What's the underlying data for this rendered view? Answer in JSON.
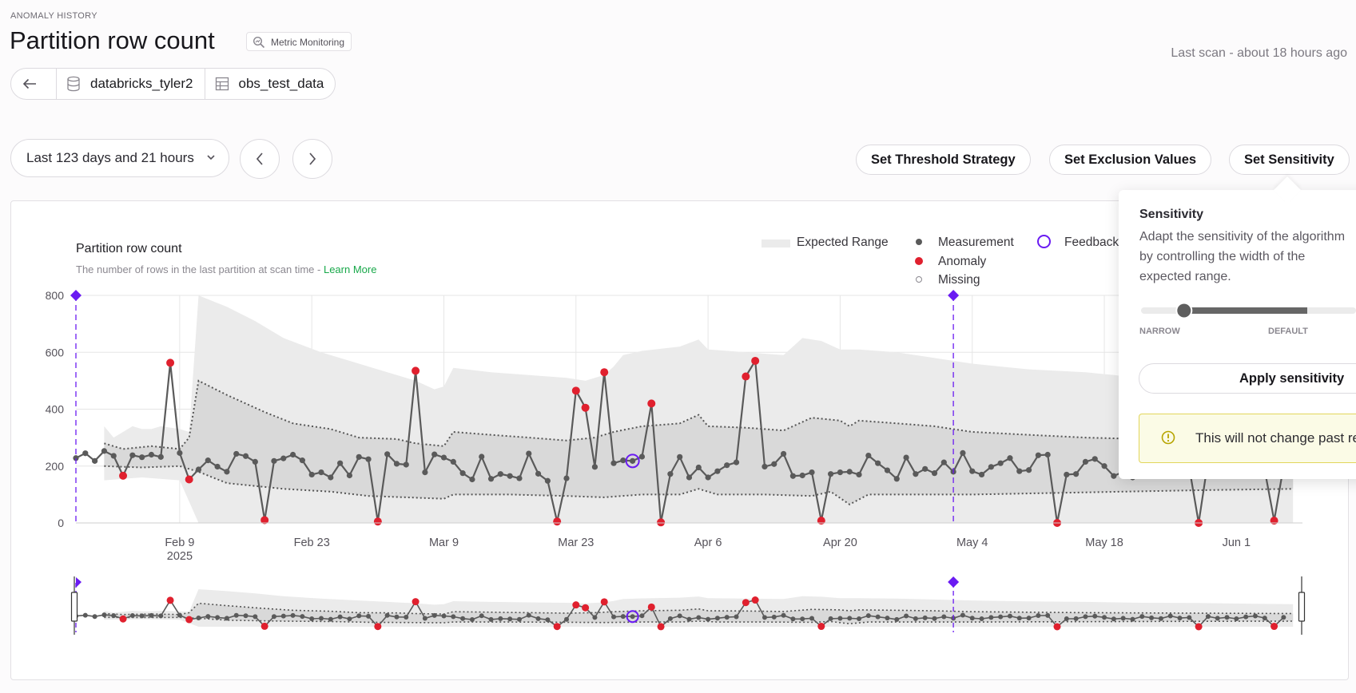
{
  "header": {
    "eyebrow": "ANOMALY HISTORY",
    "title": "Partition row count",
    "tag": "Metric Monitoring",
    "last_scan": "Last scan - about 18 hours ago",
    "breadcrumbs": [
      "databricks_tyler2",
      "obs_test_data"
    ]
  },
  "toolbar": {
    "range_label": "Last 123 days and 21 hours",
    "buttons": [
      "Set Threshold Strategy",
      "Set Exclusion Values",
      "Set Sensitivity"
    ]
  },
  "chart": {
    "title": "Partition row count",
    "subtitle": "The number of rows in the last partition at scan time - ",
    "learn_more": "Learn More",
    "legend": {
      "expected_range": "Expected Range",
      "measurement": "Measurement",
      "anomaly": "Anomaly",
      "missing": "Missing",
      "feedback": "Feedback"
    }
  },
  "chart_data": {
    "type": "line",
    "xlabel": "",
    "ylabel": "",
    "ylim": [
      0,
      800
    ],
    "y_ticks": [
      0,
      200,
      400,
      600,
      800
    ],
    "x_range": [
      "2025-01-29",
      "2025-06-08"
    ],
    "x_ticks": [
      {
        "date": "2025-02-09",
        "label": "Feb 9",
        "sub": "2025"
      },
      {
        "date": "2025-02-23",
        "label": "Feb 23",
        "sub": ""
      },
      {
        "date": "2025-03-09",
        "label": "Mar 9",
        "sub": ""
      },
      {
        "date": "2025-03-23",
        "label": "Mar 23",
        "sub": ""
      },
      {
        "date": "2025-04-06",
        "label": "Apr 6",
        "sub": ""
      },
      {
        "date": "2025-04-20",
        "label": "Apr 20",
        "sub": ""
      },
      {
        "date": "2025-05-04",
        "label": "May 4",
        "sub": ""
      },
      {
        "date": "2025-05-18",
        "label": "May 18",
        "sub": ""
      },
      {
        "date": "2025-06-01",
        "label": "Jun 1",
        "sub": ""
      }
    ],
    "markers": [
      "2025-01-29",
      "2025-05-02"
    ],
    "feedback_point": "2025-03-29",
    "expected_outer_upper": [
      [
        "2025-02-01",
        340
      ],
      [
        "2025-02-02",
        300
      ],
      [
        "2025-02-04",
        340
      ],
      [
        "2025-02-05",
        330
      ],
      [
        "2025-02-06",
        330
      ],
      [
        "2025-02-07",
        340
      ],
      [
        "2025-02-09",
        330
      ],
      [
        "2025-02-10",
        320
      ],
      [
        "2025-02-11",
        800
      ],
      [
        "2025-02-14",
        760
      ],
      [
        "2025-02-17",
        710
      ],
      [
        "2025-02-20",
        650
      ],
      [
        "2025-02-24",
        600
      ],
      [
        "2025-02-28",
        560
      ],
      [
        "2025-03-03",
        530
      ],
      [
        "2025-03-06",
        500
      ],
      [
        "2025-03-08",
        470
      ],
      [
        "2025-03-09",
        480
      ],
      [
        "2025-03-10",
        545
      ],
      [
        "2025-03-14",
        530
      ],
      [
        "2025-03-18",
        520
      ],
      [
        "2025-03-22",
        510
      ],
      [
        "2025-03-24",
        500
      ],
      [
        "2025-03-26",
        520
      ],
      [
        "2025-03-27",
        550
      ],
      [
        "2025-03-28",
        590
      ],
      [
        "2025-03-30",
        605
      ],
      [
        "2025-04-03",
        620
      ],
      [
        "2025-04-05",
        645
      ],
      [
        "2025-04-06",
        610
      ],
      [
        "2025-04-10",
        600
      ],
      [
        "2025-04-14",
        590
      ],
      [
        "2025-04-16",
        650
      ],
      [
        "2025-04-18",
        640
      ],
      [
        "2025-04-20",
        610
      ],
      [
        "2025-04-22",
        610
      ],
      [
        "2025-04-26",
        600
      ],
      [
        "2025-04-30",
        580
      ],
      [
        "2025-05-04",
        560
      ],
      [
        "2025-05-10",
        540
      ],
      [
        "2025-05-16",
        530
      ],
      [
        "2025-05-22",
        510
      ],
      [
        "2025-05-28",
        505
      ],
      [
        "2025-06-03",
        490
      ],
      [
        "2025-06-07",
        480
      ]
    ],
    "expected_outer_lower": [
      [
        "2025-02-01",
        150
      ],
      [
        "2025-02-05",
        160
      ],
      [
        "2025-02-09",
        150
      ],
      [
        "2025-02-11",
        0
      ],
      [
        "2025-06-07",
        0
      ]
    ],
    "expected_inner_upper": [
      [
        "2025-02-01",
        280
      ],
      [
        "2025-02-03",
        260
      ],
      [
        "2025-02-06",
        270
      ],
      [
        "2025-02-09",
        260
      ],
      [
        "2025-02-10",
        300
      ],
      [
        "2025-02-11",
        500
      ],
      [
        "2025-02-14",
        450
      ],
      [
        "2025-02-18",
        390
      ],
      [
        "2025-02-21",
        350
      ],
      [
        "2025-02-25",
        330
      ],
      [
        "2025-02-28",
        300
      ],
      [
        "2025-03-04",
        295
      ],
      [
        "2025-03-06",
        280
      ],
      [
        "2025-03-09",
        270
      ],
      [
        "2025-03-10",
        320
      ],
      [
        "2025-03-14",
        310
      ],
      [
        "2025-03-18",
        300
      ],
      [
        "2025-03-22",
        290
      ],
      [
        "2025-03-25",
        300
      ],
      [
        "2025-03-27",
        320
      ],
      [
        "2025-03-30",
        340
      ],
      [
        "2025-04-03",
        350
      ],
      [
        "2025-04-05",
        380
      ],
      [
        "2025-04-06",
        340
      ],
      [
        "2025-04-10",
        335
      ],
      [
        "2025-04-14",
        325
      ],
      [
        "2025-04-17",
        370
      ],
      [
        "2025-04-20",
        360
      ],
      [
        "2025-04-21",
        340
      ],
      [
        "2025-04-22",
        360
      ],
      [
        "2025-04-26",
        350
      ],
      [
        "2025-04-30",
        340
      ],
      [
        "2025-05-04",
        320
      ],
      [
        "2025-05-10",
        310
      ],
      [
        "2025-05-16",
        300
      ],
      [
        "2025-05-22",
        295
      ],
      [
        "2025-05-28",
        290
      ],
      [
        "2025-06-03",
        285
      ],
      [
        "2025-06-07",
        280
      ]
    ],
    "expected_inner_lower": [
      [
        "2025-02-01",
        200
      ],
      [
        "2025-02-05",
        195
      ],
      [
        "2025-02-09",
        200
      ],
      [
        "2025-02-11",
        180
      ],
      [
        "2025-02-14",
        140
      ],
      [
        "2025-02-20",
        120
      ],
      [
        "2025-02-25",
        110
      ],
      [
        "2025-03-01",
        95
      ],
      [
        "2025-03-05",
        90
      ],
      [
        "2025-03-09",
        85
      ],
      [
        "2025-03-10",
        100
      ],
      [
        "2025-03-16",
        100
      ],
      [
        "2025-03-22",
        95
      ],
      [
        "2025-03-26",
        90
      ],
      [
        "2025-03-30",
        100
      ],
      [
        "2025-04-03",
        100
      ],
      [
        "2025-04-05",
        120
      ],
      [
        "2025-04-07",
        100
      ],
      [
        "2025-04-12",
        100
      ],
      [
        "2025-04-17",
        95
      ],
      [
        "2025-04-19",
        110
      ],
      [
        "2025-04-21",
        65
      ],
      [
        "2025-04-23",
        100
      ],
      [
        "2025-04-28",
        100
      ],
      [
        "2025-05-04",
        100
      ],
      [
        "2025-05-12",
        105
      ],
      [
        "2025-05-20",
        110
      ],
      [
        "2025-05-28",
        115
      ],
      [
        "2025-06-07",
        120
      ]
    ],
    "series": [
      {
        "name": "Measurement",
        "points": [
          [
            "2025-01-29",
            228
          ],
          [
            "2025-01-30",
            245
          ],
          [
            "2025-01-31",
            218
          ],
          [
            "2025-02-01",
            253
          ],
          [
            "2025-02-02",
            236
          ],
          [
            "2025-02-03",
            166
          ],
          [
            "2025-02-04",
            238
          ],
          [
            "2025-02-05",
            231
          ],
          [
            "2025-02-06",
            240
          ],
          [
            "2025-02-07",
            232
          ],
          [
            "2025-02-08",
            563
          ],
          [
            "2025-02-09",
            246
          ],
          [
            "2025-02-10",
            153
          ],
          [
            "2025-02-11",
            188
          ],
          [
            "2025-02-12",
            220
          ],
          [
            "2025-02-13",
            198
          ],
          [
            "2025-02-14",
            180
          ],
          [
            "2025-02-15",
            243
          ],
          [
            "2025-02-16",
            235
          ],
          [
            "2025-02-17",
            215
          ],
          [
            "2025-02-18",
            10
          ],
          [
            "2025-02-19",
            218
          ],
          [
            "2025-02-20",
            227
          ],
          [
            "2025-02-21",
            240
          ],
          [
            "2025-02-22",
            220
          ],
          [
            "2025-02-23",
            170
          ],
          [
            "2025-02-24",
            178
          ],
          [
            "2025-02-25",
            160
          ],
          [
            "2025-02-26",
            210
          ],
          [
            "2025-02-27",
            167
          ],
          [
            "2025-02-28",
            232
          ],
          [
            "2025-03-01",
            224
          ],
          [
            "2025-03-02",
            5
          ],
          [
            "2025-03-03",
            242
          ],
          [
            "2025-03-04",
            208
          ],
          [
            "2025-03-05",
            205
          ],
          [
            "2025-03-06",
            535
          ],
          [
            "2025-03-07",
            178
          ],
          [
            "2025-03-08",
            241
          ],
          [
            "2025-03-09",
            230
          ],
          [
            "2025-03-10",
            215
          ],
          [
            "2025-03-11",
            175
          ],
          [
            "2025-03-12",
            153
          ],
          [
            "2025-03-13",
            233
          ],
          [
            "2025-03-14",
            155
          ],
          [
            "2025-03-15",
            172
          ],
          [
            "2025-03-16",
            165
          ],
          [
            "2025-03-17",
            157
          ],
          [
            "2025-03-18",
            244
          ],
          [
            "2025-03-19",
            173
          ],
          [
            "2025-03-20",
            148
          ],
          [
            "2025-03-21",
            5
          ],
          [
            "2025-03-22",
            157
          ],
          [
            "2025-03-23",
            465
          ],
          [
            "2025-03-24",
            405
          ],
          [
            "2025-03-25",
            197
          ],
          [
            "2025-03-26",
            530
          ],
          [
            "2025-03-27",
            210
          ],
          [
            "2025-03-28",
            220
          ],
          [
            "2025-03-29",
            218
          ],
          [
            "2025-03-30",
            233
          ],
          [
            "2025-03-31",
            420
          ],
          [
            "2025-04-01",
            2
          ],
          [
            "2025-04-02",
            172
          ],
          [
            "2025-04-03",
            232
          ],
          [
            "2025-04-04",
            160
          ],
          [
            "2025-04-05",
            195
          ],
          [
            "2025-04-06",
            160
          ],
          [
            "2025-04-07",
            182
          ],
          [
            "2025-04-08",
            203
          ],
          [
            "2025-04-09",
            213
          ],
          [
            "2025-04-10",
            515
          ],
          [
            "2025-04-11",
            570
          ],
          [
            "2025-04-12",
            198
          ],
          [
            "2025-04-13",
            207
          ],
          [
            "2025-04-14",
            243
          ],
          [
            "2025-04-15",
            165
          ],
          [
            "2025-04-16",
            167
          ],
          [
            "2025-04-17",
            178
          ],
          [
            "2025-04-18",
            8
          ],
          [
            "2025-04-19",
            172
          ],
          [
            "2025-04-20",
            178
          ],
          [
            "2025-04-21",
            180
          ],
          [
            "2025-04-22",
            170
          ],
          [
            "2025-04-23",
            237
          ],
          [
            "2025-04-24",
            210
          ],
          [
            "2025-04-25",
            185
          ],
          [
            "2025-04-26",
            155
          ],
          [
            "2025-04-27",
            230
          ],
          [
            "2025-04-28",
            172
          ],
          [
            "2025-04-29",
            190
          ],
          [
            "2025-04-30",
            175
          ],
          [
            "2025-05-01",
            213
          ],
          [
            "2025-05-02",
            180
          ],
          [
            "2025-05-03",
            246
          ],
          [
            "2025-05-04",
            182
          ],
          [
            "2025-05-05",
            170
          ],
          [
            "2025-05-06",
            197
          ],
          [
            "2025-05-07",
            210
          ],
          [
            "2025-05-08",
            228
          ],
          [
            "2025-05-09",
            182
          ],
          [
            "2025-05-10",
            186
          ],
          [
            "2025-05-11",
            238
          ],
          [
            "2025-05-12",
            240
          ],
          [
            "2025-05-13",
            0
          ],
          [
            "2025-05-14",
            170
          ],
          [
            "2025-05-15",
            172
          ],
          [
            "2025-05-16",
            215
          ],
          [
            "2025-05-17",
            225
          ],
          [
            "2025-05-18",
            200
          ],
          [
            "2025-05-19",
            165
          ],
          [
            "2025-05-20",
            180
          ],
          [
            "2025-05-21",
            160
          ],
          [
            "2025-05-22",
            220
          ],
          [
            "2025-05-23",
            190
          ],
          [
            "2025-05-24",
            175
          ],
          [
            "2025-05-25",
            230
          ],
          [
            "2025-05-26",
            185
          ],
          [
            "2025-05-27",
            195
          ],
          [
            "2025-05-28",
            0
          ],
          [
            "2025-05-29",
            220
          ],
          [
            "2025-05-30",
            180
          ],
          [
            "2025-05-31",
            200
          ],
          [
            "2025-06-01",
            170
          ],
          [
            "2025-06-02",
            210
          ],
          [
            "2025-06-03",
            230
          ],
          [
            "2025-06-04",
            185
          ],
          [
            "2025-06-05",
            8
          ],
          [
            "2025-06-06",
            200
          ]
        ]
      }
    ],
    "anomalies": [
      "2025-02-03",
      "2025-02-08",
      "2025-02-10",
      "2025-02-18",
      "2025-03-02",
      "2025-03-06",
      "2025-03-21",
      "2025-03-23",
      "2025-03-24",
      "2025-03-26",
      "2025-03-31",
      "2025-04-01",
      "2025-04-10",
      "2025-04-11",
      "2025-04-18",
      "2025-05-13",
      "2025-05-28",
      "2025-06-05"
    ]
  },
  "sensitivity": {
    "title": "Sensitivity",
    "description": "Adapt the sensitivity of the algorithm by controlling the width of the expected range.",
    "narrow_label": "NARROW",
    "default_label": "DEFAULT",
    "slider_value": 0.2,
    "apply_label": "Apply sensitivity",
    "warning": "This will not change past re"
  },
  "colors": {
    "anomaly": "#e0202e",
    "measurement": "#5a5a5a",
    "feedback": "#6a1bf2",
    "expected_outer": "#ebebeb",
    "expected_inner": "#d9d9d9"
  }
}
